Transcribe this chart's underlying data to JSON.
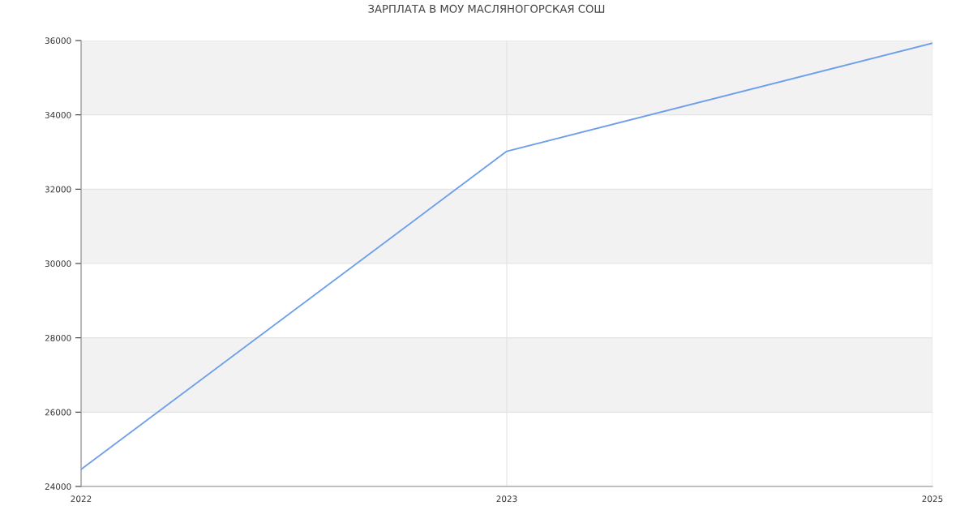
{
  "chart_data": {
    "type": "line",
    "title": "ЗАРПЛАТА В МОУ МАСЛЯНОГОРСКАЯ СОШ",
    "categories": [
      "2022",
      "2023",
      "2025"
    ],
    "series": [
      {
        "color": "#6d9eeb",
        "values": [
          24460,
          33020,
          35930
        ]
      }
    ],
    "ylim": [
      24000,
      36000
    ],
    "yticks": [
      24000,
      26000,
      28000,
      30000,
      32000,
      34000,
      36000
    ],
    "bands": [
      {
        "axis": "y",
        "from": 26000,
        "to": 28000,
        "color": "#f2f2f2"
      },
      {
        "axis": "y",
        "from": 30000,
        "to": 32000,
        "color": "#f2f2f2"
      },
      {
        "axis": "y",
        "from": 34000,
        "to": 36000,
        "color": "#f2f2f2"
      }
    ],
    "grid": true,
    "marker": "none",
    "line_style": "solid"
  }
}
